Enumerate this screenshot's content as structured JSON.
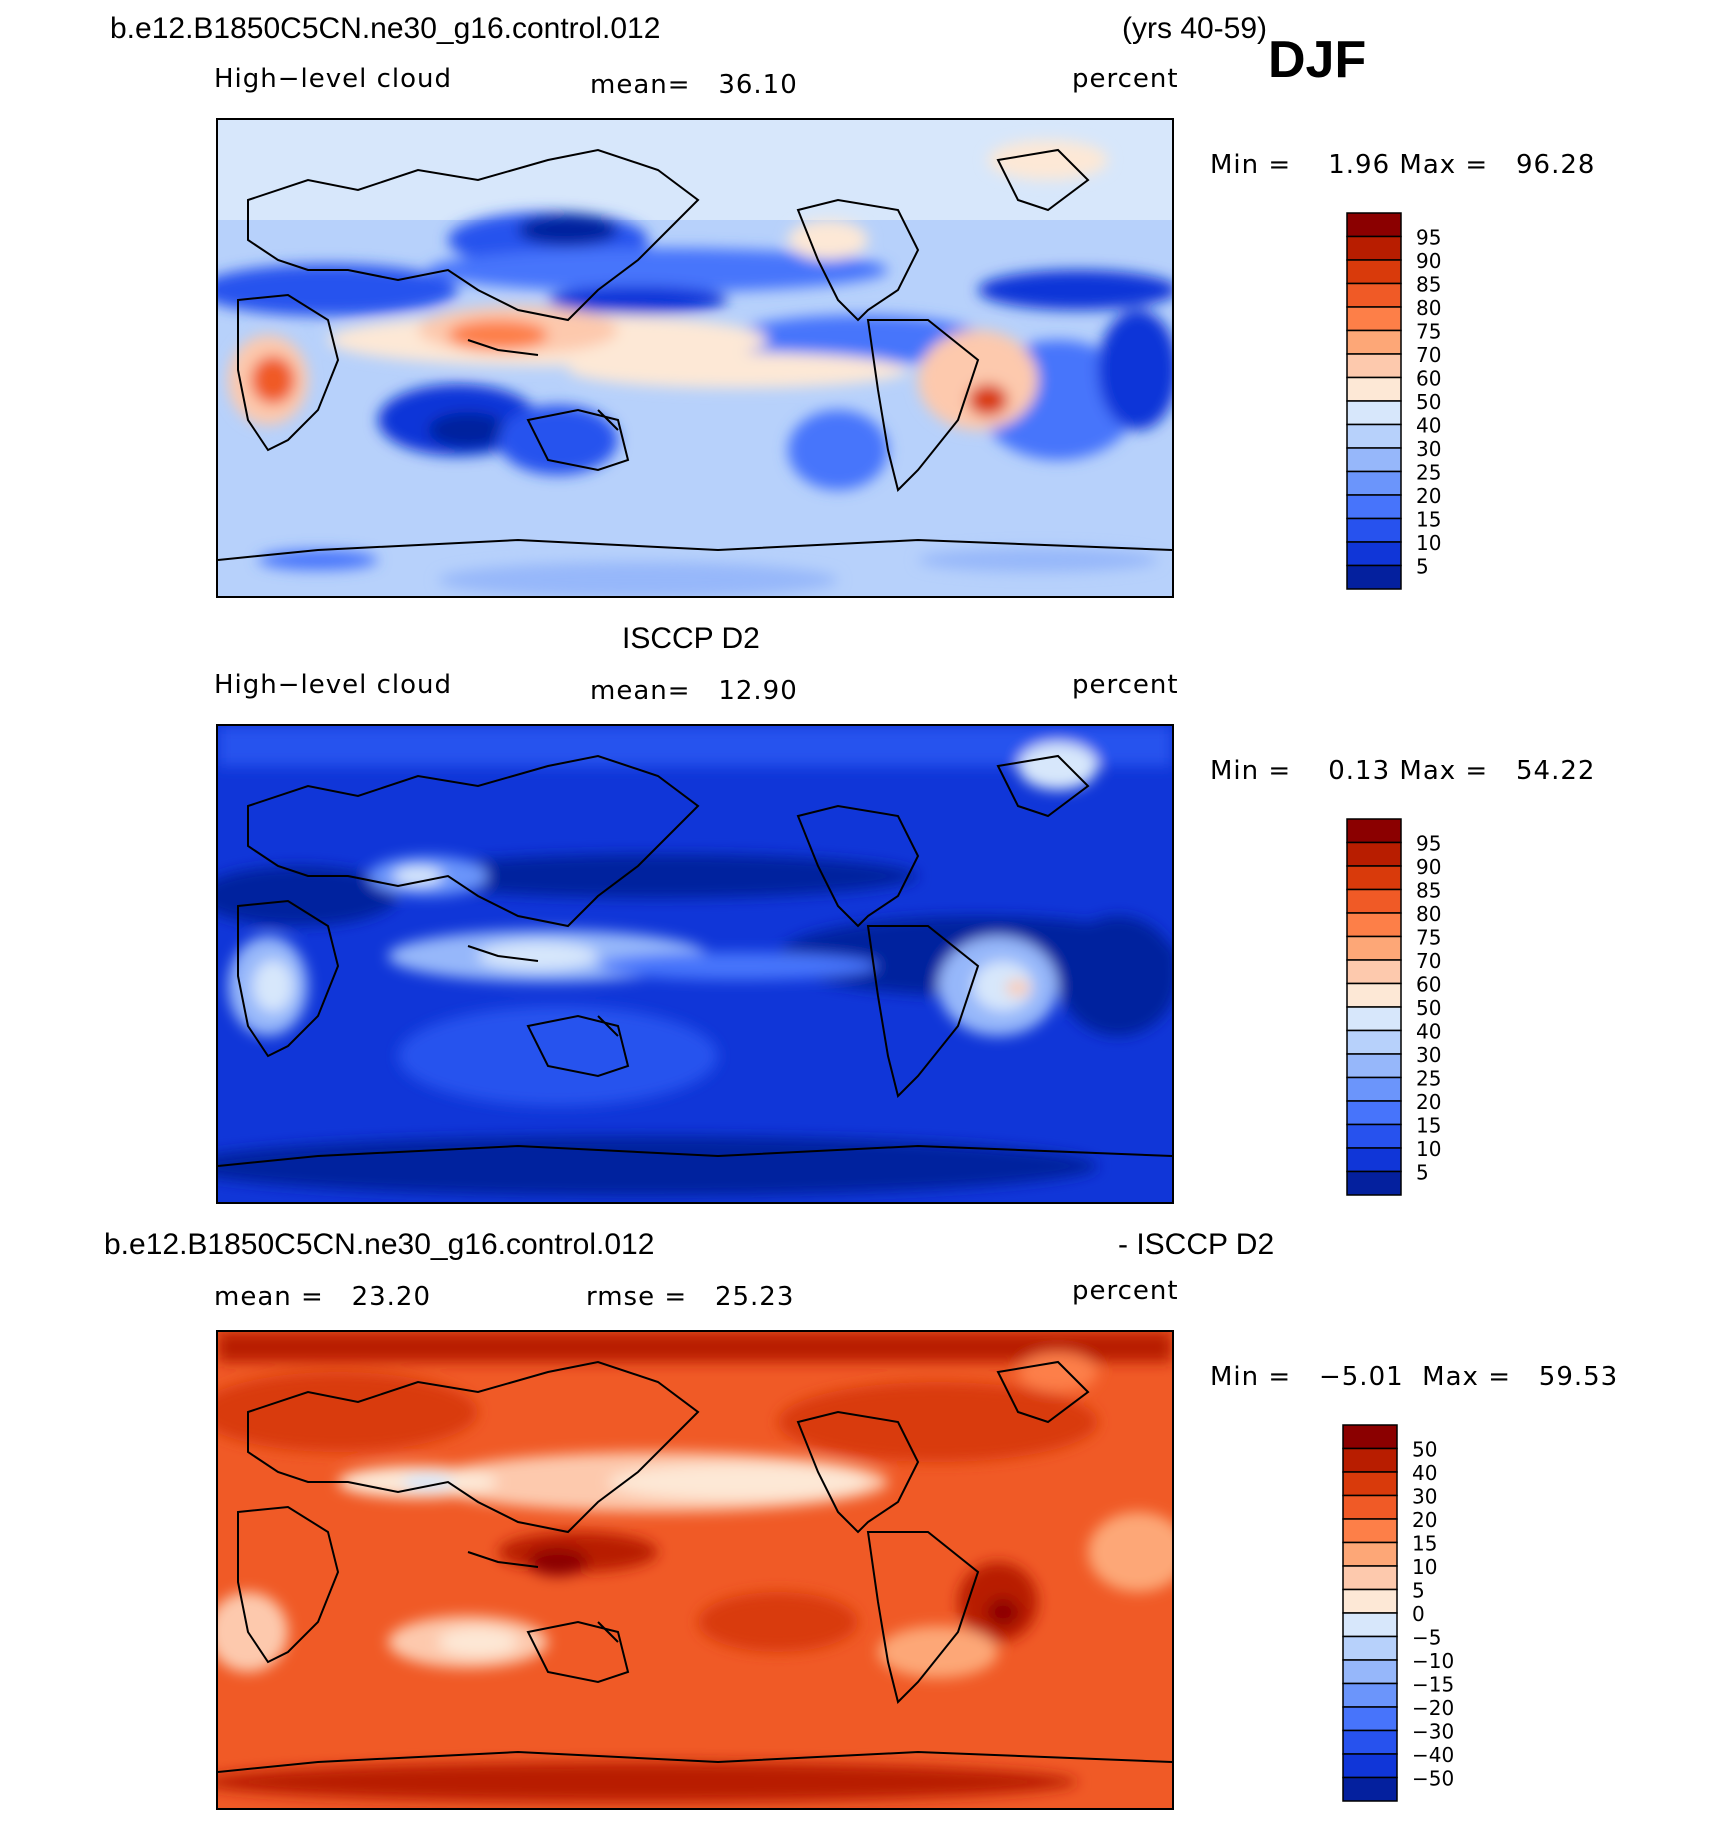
{
  "header": {
    "case": "b.e12.B1850C5CN.ne30_g16.control.012",
    "years": "(yrs 40-59)",
    "season": "DJF"
  },
  "panels": [
    {
      "id": "model",
      "left_label": "High−level cloud",
      "center_label": "mean=   36.10",
      "right_label": "percent",
      "minmax": "Min =    1.96 Max =   96.28",
      "colorbar_labels": [
        "95",
        "90",
        "85",
        "80",
        "75",
        "70",
        "60",
        "50",
        "40",
        "30",
        "25",
        "20",
        "15",
        "10",
        "5"
      ],
      "colors": [
        "#8b0000",
        "#b81d00",
        "#d93a0b",
        "#f05a26",
        "#fd7f48",
        "#fda777",
        "#fdc9ad",
        "#fde8d6",
        "#d7e7fb",
        "#b7d1fb",
        "#96b7fa",
        "#6b95fb",
        "#4774fb",
        "#2752ee",
        "#1036d8",
        "#04209e"
      ]
    },
    {
      "id": "obs",
      "title": "ISCCP D2",
      "left_label": "High−level cloud",
      "center_label": "mean=   12.90",
      "right_label": "percent",
      "minmax": "Min =    0.13 Max =   54.22",
      "colorbar_labels": [
        "95",
        "90",
        "85",
        "80",
        "75",
        "70",
        "60",
        "50",
        "40",
        "30",
        "25",
        "20",
        "15",
        "10",
        "5"
      ],
      "colors": [
        "#8b0000",
        "#b81d00",
        "#d93a0b",
        "#f05a26",
        "#fd7f48",
        "#fda777",
        "#fdc9ad",
        "#fde8d6",
        "#d7e7fb",
        "#b7d1fb",
        "#96b7fa",
        "#6b95fb",
        "#4774fb",
        "#2752ee",
        "#1036d8",
        "#04209e"
      ]
    },
    {
      "id": "diff",
      "title_left": "b.e12.B1850C5CN.ne30_g16.control.012",
      "title_right": "- ISCCP D2",
      "left_label": "mean =   23.20",
      "center_label": "rmse =   25.23",
      "right_label": "percent",
      "minmax": "Min =   −5.01  Max =   59.53",
      "colorbar_labels": [
        "50",
        "40",
        "30",
        "20",
        "15",
        "10",
        "5",
        "0",
        "−5",
        "−10",
        "−15",
        "−20",
        "−30",
        "−40",
        "−50"
      ],
      "colors": [
        "#8b0000",
        "#b81d00",
        "#d93a0b",
        "#f05a26",
        "#fd7f48",
        "#fda777",
        "#fdc9ad",
        "#fde8d6",
        "#d7e7fb",
        "#b7d1fb",
        "#96b7fa",
        "#6b95fb",
        "#4774fb",
        "#2752ee",
        "#1036d8",
        "#04209e"
      ]
    }
  ]
}
